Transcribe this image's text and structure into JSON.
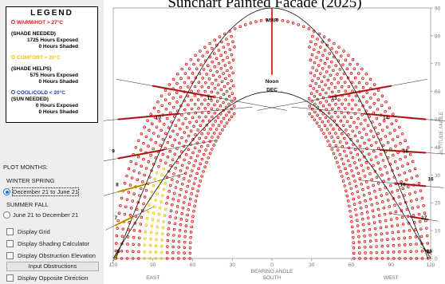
{
  "title": "Sunchart Painted Facade (2025)",
  "legend": {
    "title": "LEGEND",
    "categories": [
      {
        "label": "WARM/HOT > 27°C",
        "color": "#e21b1b",
        "subtitle": "(SHADE NEEDED)",
        "exposed": "1725 Hours Exposed",
        "shaded": "0 Hours Shaded"
      },
      {
        "label": "COMFORT > 20°C",
        "color": "#f2c200",
        "subtitle": "(SHADE HELPS)",
        "exposed": "575 Hours Exposed",
        "shaded": "0 Hours Shaded"
      },
      {
        "label": "COOL/COLD < 20°C",
        "color": "#1f3fbf",
        "subtitle": "(SUN NEEDED)",
        "exposed": "0 Hours Exposed",
        "shaded": "0 Hours Shaded"
      }
    ]
  },
  "plot_months": {
    "title": "PLOT MONTHS:",
    "seasons": [
      {
        "label": "WINTER SPRING",
        "option": "December 21 to June 21",
        "selected": true
      },
      {
        "label": "SUMMER FALL",
        "option": "June 21 to December 21",
        "selected": false
      }
    ]
  },
  "checkboxes": [
    {
      "label": "Display Grid",
      "checked": false
    },
    {
      "label": "Display Shading Calculator",
      "checked": false
    },
    {
      "label": "Display Obstruction Elevation",
      "checked": false
    }
  ],
  "input_obstructions_label": "Input Obstructions",
  "opposite_direction_label": "Display Opposite Direction",
  "chart_data": {
    "type": "scatter",
    "xlabel": "BEARING ANGLE",
    "ylabel": "ALTITUDE ANGLE",
    "x_ticks": [
      120,
      90,
      60,
      30,
      0,
      30,
      60,
      90,
      120
    ],
    "x_tick_values": [
      -120,
      -90,
      -60,
      -30,
      0,
      30,
      60,
      90,
      120
    ],
    "y_ticks": [
      0,
      10,
      20,
      30,
      40,
      50,
      60,
      70,
      80,
      90
    ],
    "xlim": [
      -120,
      120
    ],
    "ylim": [
      0,
      90
    ],
    "direction_labels": [
      {
        "label": "EAST",
        "x": -90
      },
      {
        "label": "SOUTH",
        "x": 0
      },
      {
        "label": "WEST",
        "x": 90
      }
    ],
    "month_labels": [
      {
        "label": "MAR",
        "x": 0,
        "y": 85
      },
      {
        "label": "Noon",
        "x": 0,
        "y": 63
      },
      {
        "label": "DEC",
        "x": 0,
        "y": 60
      }
    ],
    "hour_labels": [
      {
        "label": "6",
        "x": -116,
        "y": 2
      },
      {
        "label": "7",
        "x": -118,
        "y": 14
      },
      {
        "label": "8",
        "x": -117,
        "y": 26
      },
      {
        "label": "9",
        "x": -120,
        "y": 38
      },
      {
        "label": "10",
        "x": -86,
        "y": 50
      },
      {
        "label": "11",
        "x": -47,
        "y": 57
      },
      {
        "label": "13",
        "x": 47,
        "y": 57
      },
      {
        "label": "14",
        "x": 86,
        "y": 50
      },
      {
        "label": "15",
        "x": 101,
        "y": 38
      },
      {
        "label": "16",
        "x": 99,
        "y": 26
      },
      {
        "label": "16",
        "x": 120,
        "y": 28
      },
      {
        "label": "17",
        "x": 115,
        "y": 14
      },
      {
        "label": "18",
        "x": 119,
        "y": 2
      }
    ],
    "solstice_path": {
      "noon_altitude": 60,
      "sunrise_azimuth": 62
    },
    "equinox_path": {
      "noon_altitude": 90,
      "sunrise_azimuth": 90
    },
    "hour_lines": [
      {
        "hour": 6,
        "band": [
          [
            -119,
            0
          ],
          [
            -116,
            3
          ]
        ]
      },
      {
        "hour": 7,
        "band": [
          [
            -118,
            12
          ],
          [
            -105,
            15
          ]
        ]
      },
      {
        "hour": 8,
        "band": [
          [
            -116,
            24
          ],
          [
            -93,
            27
          ]
        ]
      },
      {
        "hour": 9,
        "band": [
          [
            -116,
            36
          ],
          [
            -82,
            39
          ]
        ]
      },
      {
        "hour": 10,
        "band": [
          [
            -116,
            50
          ],
          [
            -70,
            52
          ]
        ]
      },
      {
        "hour": 11,
        "band": [
          [
            -90,
            62
          ],
          [
            -44,
            58
          ]
        ]
      },
      {
        "hour": 13,
        "band": [
          [
            90,
            62
          ],
          [
            44,
            58
          ]
        ]
      },
      {
        "hour": 14,
        "band": [
          [
            116,
            50
          ],
          [
            70,
            52
          ]
        ]
      },
      {
        "hour": 15,
        "band": [
          [
            116,
            38
          ],
          [
            82,
            39
          ]
        ]
      },
      {
        "hour": 16,
        "band": [
          [
            116,
            26
          ],
          [
            93,
            27
          ]
        ]
      },
      {
        "hour": 17,
        "band": [
          [
            118,
            14
          ],
          [
            105,
            15
          ]
        ]
      },
      {
        "hour": 18,
        "band": [
          [
            119,
            2
          ],
          [
            116,
            3
          ]
        ]
      }
    ],
    "series": [
      {
        "category": "warm_hot",
        "color": "#e21b1b"
      },
      {
        "category": "comfort",
        "color": "#f2c200"
      },
      {
        "category": "cool_cold",
        "color": "#1f3fbf"
      }
    ],
    "comfort_region": {
      "x_max": -80,
      "y_max": 33
    }
  }
}
